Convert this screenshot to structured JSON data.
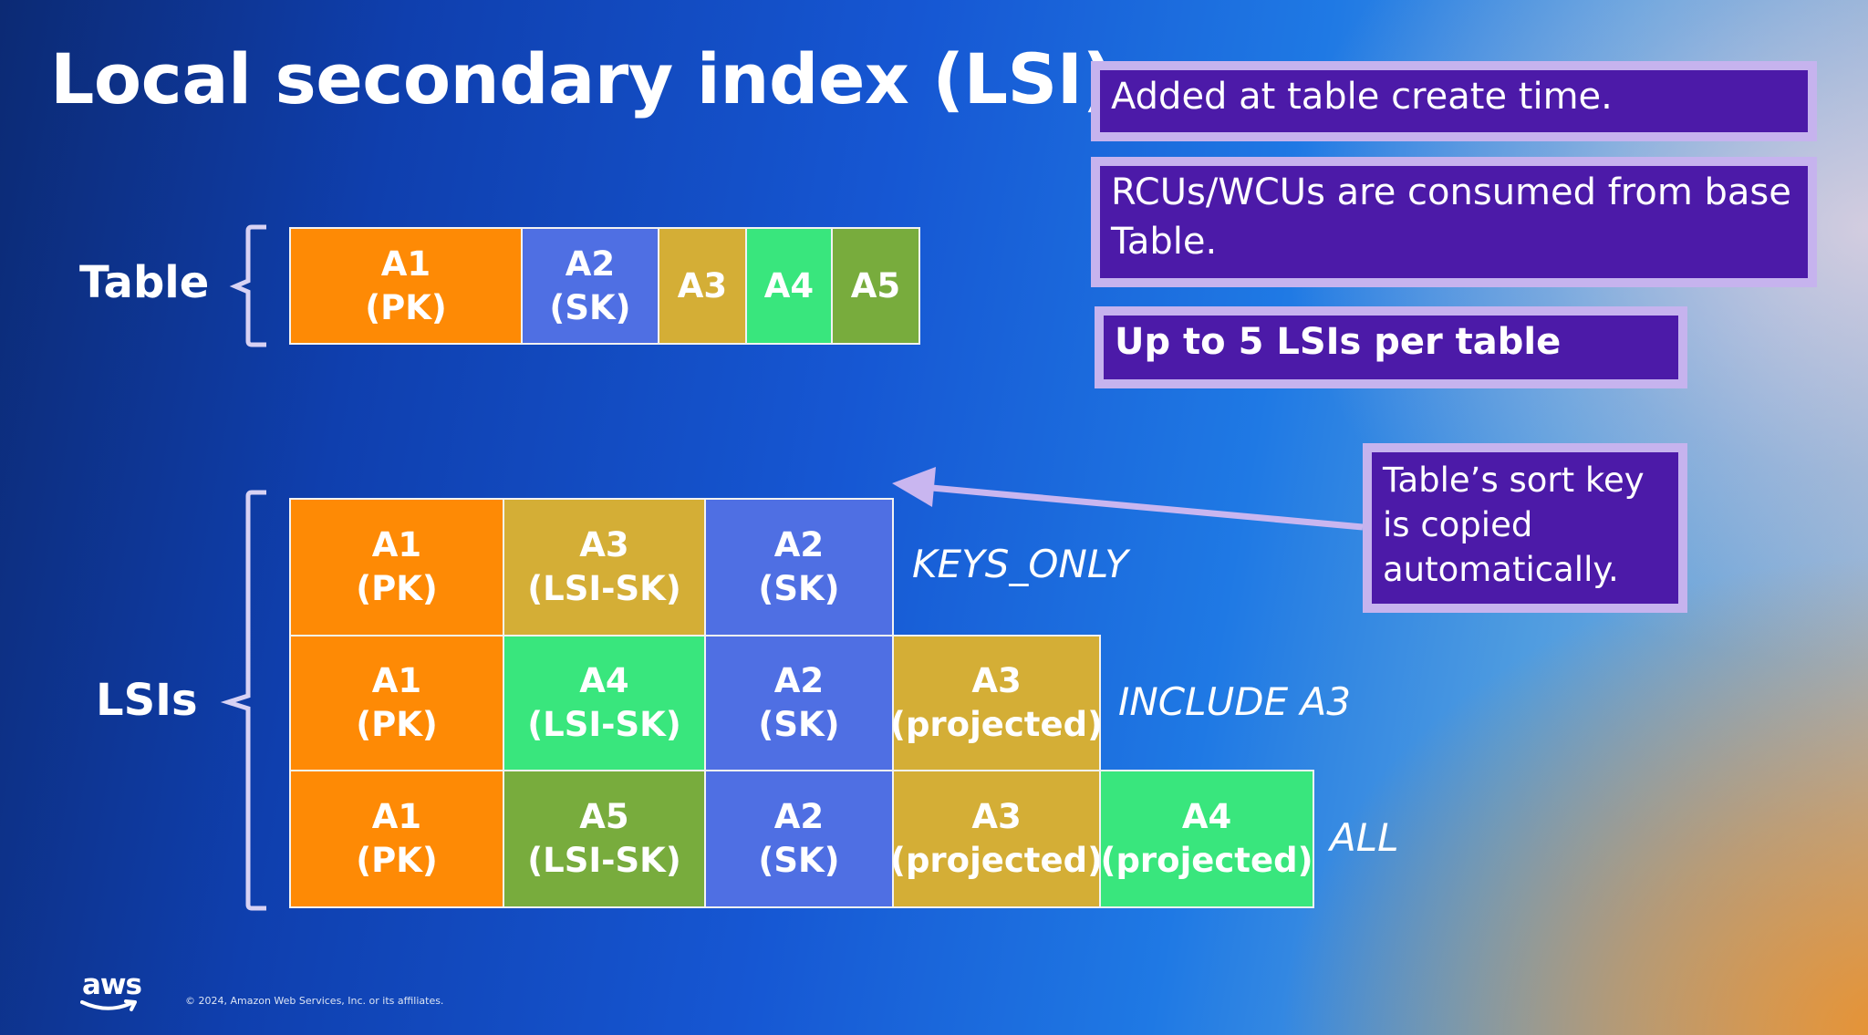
{
  "title": "Local secondary index (LSI)",
  "callouts": {
    "create_time": "Added at table create time.",
    "capacity": "RCUs/WCUs are consumed from base Table.",
    "limit": "Up to 5 LSIs per table",
    "sort_key": "Table’s sort key is copied automatically."
  },
  "table": {
    "label": "Table",
    "cells": [
      {
        "text": "A1\n(PK)",
        "color": "#fe8a05"
      },
      {
        "text": "A2\n(SK)",
        "color": "#4f6fe3"
      },
      {
        "text": "A3",
        "color": "#d4ae36"
      },
      {
        "text": "A4",
        "color": "#39e67d"
      },
      {
        "text": "A5",
        "color": "#78ac3d"
      }
    ]
  },
  "lsis": {
    "label": "LSIs",
    "rows": [
      {
        "projection": "KEYS_ONLY",
        "cells": [
          "A1\n(PK)",
          "A3\n(LSI-SK)",
          "A2\n(SK)"
        ]
      },
      {
        "projection": "INCLUDE A3",
        "cells": [
          "A1\n(PK)",
          "A4\n(LSI-SK)",
          "A2\n(SK)",
          "A3\n(projected)"
        ]
      },
      {
        "projection": "ALL",
        "cells": [
          "A1\n(PK)",
          "A5\n(LSI-SK)",
          "A2\n(SK)",
          "A3\n(projected)",
          "A4\n(projected)"
        ]
      }
    ]
  },
  "colors": {
    "callout_fill": "#4c1aa8",
    "callout_border": "#c6b3ee",
    "arrow": "#c9b6f0"
  },
  "footer": {
    "logo": "aws",
    "copyright": "© 2024, Amazon Web Services, Inc. or its affiliates."
  }
}
